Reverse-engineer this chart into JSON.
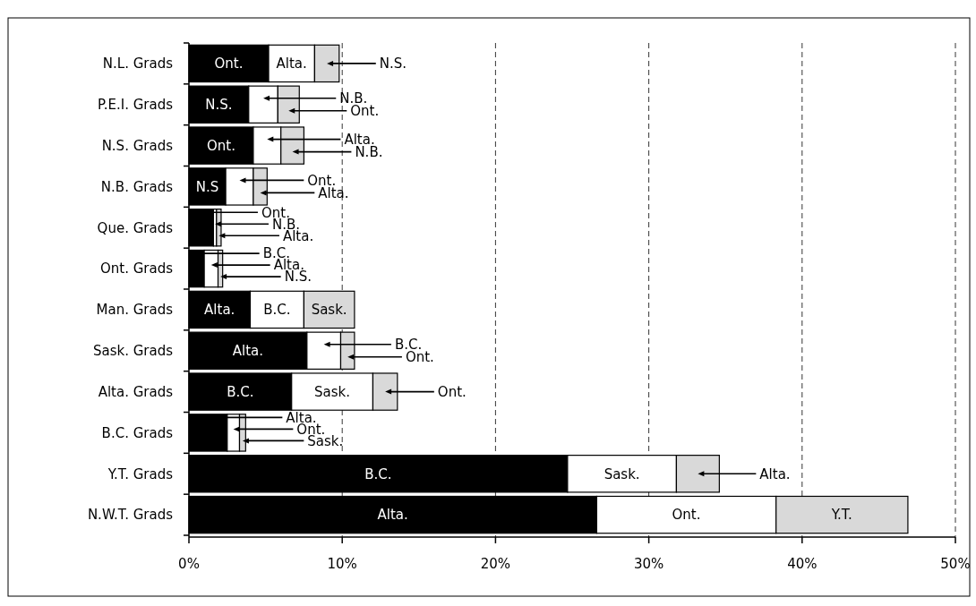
{
  "chart_data": {
    "type": "bar",
    "orientation": "horizontal",
    "stacked": true,
    "grid": "x",
    "categories": [
      "N.L. Grads",
      "P.E.I. Grads",
      "N.S. Grads",
      "N.B. Grads",
      "Que. Grads",
      "Ont. Grads",
      "Man. Grads",
      "Sask. Grads",
      "Alta. Grads",
      "B.C. Grads",
      "Y.T. Grads",
      "N.W.T. Grads"
    ],
    "xlim": [
      0,
      50
    ],
    "xticks": [
      {
        "value": 0,
        "label": "0%"
      },
      {
        "value": 10,
        "label": "10%"
      },
      {
        "value": 20,
        "label": "20%"
      },
      {
        "value": 30,
        "label": "30%"
      },
      {
        "value": 40,
        "label": "40%"
      },
      {
        "value": 50,
        "label": "50%"
      }
    ],
    "series": [
      {
        "color": "#000000",
        "values": [
          5.2,
          3.9,
          4.2,
          2.4,
          1.6,
          1.0,
          4.0,
          7.7,
          6.7,
          2.5,
          24.7,
          26.6
        ],
        "value_labels": [
          "Ont.",
          "N.S.",
          "Ont.",
          "N.S",
          "Ont.",
          "B.C.",
          "Alta.",
          "Alta.",
          "B.C.",
          "Alta.",
          "B.C.",
          "Alta."
        ]
      },
      {
        "color": "#ffffff",
        "values": [
          3.0,
          1.9,
          1.8,
          1.8,
          0.2,
          0.9,
          3.5,
          2.2,
          5.3,
          0.8,
          7.1,
          11.7
        ],
        "value_labels": [
          "Alta.",
          "N.B.",
          "Alta.",
          "Ont.",
          "N.B.",
          "Alta.",
          "B.C.",
          "B.C.",
          "Sask.",
          "Ont.",
          "Sask.",
          "Ont."
        ]
      },
      {
        "color": "#d9d9d9",
        "values": [
          1.6,
          1.4,
          1.5,
          0.9,
          0.3,
          0.3,
          3.3,
          0.9,
          1.6,
          0.4,
          2.8,
          8.6
        ],
        "value_labels": [
          "N.S.",
          "Ont.",
          "N.B.",
          "Alta.",
          "Alta.",
          "N.S.",
          "Sask.",
          "Ont.",
          "Ont.",
          "Sask.",
          "Alta.",
          "Y.T."
        ]
      }
    ]
  }
}
